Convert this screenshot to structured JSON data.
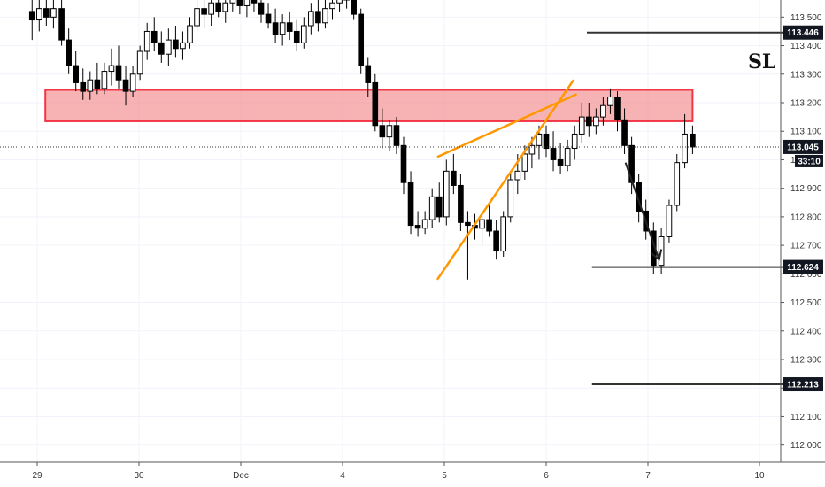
{
  "chart_data": {
    "type": "candlestick",
    "y_range": [
      111.94,
      113.56
    ],
    "x_range_days": [
      -0.1,
      10.2
    ],
    "y_ticks": [
      "113.500",
      "113.400",
      "113.300",
      "113.200",
      "113.100",
      "113.000",
      "112.900",
      "112.800",
      "112.700",
      "112.600",
      "112.500",
      "112.400",
      "112.300",
      "112.200",
      "112.100",
      "112.000"
    ],
    "x_ticks": [
      {
        "label": "29",
        "day": 0
      },
      {
        "label": "30",
        "day": 1
      },
      {
        "label": "Dec",
        "day": 2
      },
      {
        "label": "4",
        "day": 3
      },
      {
        "label": "5",
        "day": 4
      },
      {
        "label": "6",
        "day": 5
      },
      {
        "label": "7",
        "day": 6
      },
      {
        "label": "10",
        "day": 7
      }
    ],
    "current_price": {
      "value": 113.045,
      "label": "113.045",
      "countdown": "33:10"
    },
    "price_tags": [
      {
        "value": 113.446,
        "label": "113.446"
      },
      {
        "value": 112.624,
        "label": "112.624"
      },
      {
        "value": 112.213,
        "label": "112.213"
      }
    ],
    "annotations": {
      "sl_label": "SL",
      "resistance_zone": {
        "y_low": 113.135,
        "y_high": 113.245,
        "day_start": 0.08,
        "day_end": 6.4
      },
      "level_lines": [
        {
          "value": 113.446,
          "day_start": 5.4,
          "day_end": 7.3
        },
        {
          "value": 112.624,
          "day_start": 5.45,
          "day_end": 7.3
        },
        {
          "value": 112.213,
          "day_start": 5.45,
          "day_end": 7.3
        }
      ],
      "wedge_lines": [
        {
          "from": [
            3.93,
            112.58
          ],
          "to": [
            5.27,
            113.28
          ]
        },
        {
          "from": [
            3.93,
            113.01
          ],
          "to": [
            5.3,
            113.23
          ]
        }
      ],
      "arrow": {
        "from": [
          5.78,
          112.99
        ],
        "to": [
          6.1,
          112.65
        ]
      }
    },
    "candles": [
      {
        "t": -0.05,
        "o": 113.52,
        "h": 113.66,
        "l": 113.42,
        "c": 113.49
      },
      {
        "t": 0.02,
        "o": 113.49,
        "h": 113.56,
        "l": 113.45,
        "c": 113.53
      },
      {
        "t": 0.09,
        "o": 113.53,
        "h": 113.62,
        "l": 113.47,
        "c": 113.5
      },
      {
        "t": 0.16,
        "o": 113.5,
        "h": 113.6,
        "l": 113.46,
        "c": 113.53
      },
      {
        "t": 0.24,
        "o": 113.53,
        "h": 113.56,
        "l": 113.4,
        "c": 113.42
      },
      {
        "t": 0.31,
        "o": 113.42,
        "h": 113.46,
        "l": 113.3,
        "c": 113.33
      },
      {
        "t": 0.38,
        "o": 113.33,
        "h": 113.38,
        "l": 113.24,
        "c": 113.27
      },
      {
        "t": 0.45,
        "o": 113.27,
        "h": 113.32,
        "l": 113.21,
        "c": 113.24
      },
      {
        "t": 0.52,
        "o": 113.24,
        "h": 113.31,
        "l": 113.21,
        "c": 113.28
      },
      {
        "t": 0.59,
        "o": 113.28,
        "h": 113.34,
        "l": 113.23,
        "c": 113.25
      },
      {
        "t": 0.66,
        "o": 113.25,
        "h": 113.34,
        "l": 113.23,
        "c": 113.31
      },
      {
        "t": 0.73,
        "o": 113.31,
        "h": 113.39,
        "l": 113.26,
        "c": 113.33
      },
      {
        "t": 0.8,
        "o": 113.33,
        "h": 113.4,
        "l": 113.25,
        "c": 113.28
      },
      {
        "t": 0.87,
        "o": 113.28,
        "h": 113.33,
        "l": 113.19,
        "c": 113.24
      },
      {
        "t": 0.94,
        "o": 113.24,
        "h": 113.33,
        "l": 113.22,
        "c": 113.3
      },
      {
        "t": 1.01,
        "o": 113.3,
        "h": 113.4,
        "l": 113.28,
        "c": 113.38
      },
      {
        "t": 1.08,
        "o": 113.38,
        "h": 113.48,
        "l": 113.35,
        "c": 113.45
      },
      {
        "t": 1.15,
        "o": 113.45,
        "h": 113.5,
        "l": 113.38,
        "c": 113.41
      },
      {
        "t": 1.22,
        "o": 113.41,
        "h": 113.45,
        "l": 113.34,
        "c": 113.37
      },
      {
        "t": 1.29,
        "o": 113.37,
        "h": 113.46,
        "l": 113.33,
        "c": 113.42
      },
      {
        "t": 1.36,
        "o": 113.42,
        "h": 113.47,
        "l": 113.36,
        "c": 113.39
      },
      {
        "t": 1.43,
        "o": 113.39,
        "h": 113.45,
        "l": 113.35,
        "c": 113.41
      },
      {
        "t": 1.5,
        "o": 113.41,
        "h": 113.5,
        "l": 113.39,
        "c": 113.47
      },
      {
        "t": 1.57,
        "o": 113.47,
        "h": 113.56,
        "l": 113.45,
        "c": 113.53
      },
      {
        "t": 1.64,
        "o": 113.53,
        "h": 113.6,
        "l": 113.46,
        "c": 113.51
      },
      {
        "t": 1.71,
        "o": 113.51,
        "h": 113.58,
        "l": 113.47,
        "c": 113.55
      },
      {
        "t": 1.78,
        "o": 113.55,
        "h": 113.6,
        "l": 113.5,
        "c": 113.52
      },
      {
        "t": 1.85,
        "o": 113.52,
        "h": 113.58,
        "l": 113.48,
        "c": 113.55
      },
      {
        "t": 1.92,
        "o": 113.55,
        "h": 113.6,
        "l": 113.52,
        "c": 113.58
      },
      {
        "t": 1.99,
        "o": 113.58,
        "h": 113.62,
        "l": 113.51,
        "c": 113.54
      },
      {
        "t": 2.06,
        "o": 113.54,
        "h": 113.61,
        "l": 113.5,
        "c": 113.58
      },
      {
        "t": 2.13,
        "o": 113.58,
        "h": 113.63,
        "l": 113.52,
        "c": 113.55
      },
      {
        "t": 2.2,
        "o": 113.55,
        "h": 113.6,
        "l": 113.48,
        "c": 113.51
      },
      {
        "t": 2.27,
        "o": 113.51,
        "h": 113.55,
        "l": 113.46,
        "c": 113.48
      },
      {
        "t": 2.34,
        "o": 113.48,
        "h": 113.53,
        "l": 113.41,
        "c": 113.44
      },
      {
        "t": 2.41,
        "o": 113.44,
        "h": 113.51,
        "l": 113.4,
        "c": 113.48
      },
      {
        "t": 2.48,
        "o": 113.48,
        "h": 113.52,
        "l": 113.42,
        "c": 113.45
      },
      {
        "t": 2.55,
        "o": 113.45,
        "h": 113.49,
        "l": 113.38,
        "c": 113.41
      },
      {
        "t": 2.62,
        "o": 113.41,
        "h": 113.5,
        "l": 113.39,
        "c": 113.47
      },
      {
        "t": 2.69,
        "o": 113.47,
        "h": 113.55,
        "l": 113.44,
        "c": 113.52
      },
      {
        "t": 2.76,
        "o": 113.52,
        "h": 113.57,
        "l": 113.45,
        "c": 113.48
      },
      {
        "t": 2.83,
        "o": 113.48,
        "h": 113.56,
        "l": 113.46,
        "c": 113.53
      },
      {
        "t": 2.9,
        "o": 113.53,
        "h": 113.58,
        "l": 113.49,
        "c": 113.55
      },
      {
        "t": 2.97,
        "o": 113.55,
        "h": 113.6,
        "l": 113.52,
        "c": 113.57
      },
      {
        "t": 3.04,
        "o": 113.57,
        "h": 113.62,
        "l": 113.53,
        "c": 113.56
      },
      {
        "t": 3.11,
        "o": 113.56,
        "h": 113.58,
        "l": 113.49,
        "c": 113.51
      },
      {
        "t": 3.18,
        "o": 113.51,
        "h": 113.53,
        "l": 113.3,
        "c": 113.33
      },
      {
        "t": 3.25,
        "o": 113.33,
        "h": 113.36,
        "l": 113.22,
        "c": 113.27
      },
      {
        "t": 3.32,
        "o": 113.27,
        "h": 113.3,
        "l": 113.1,
        "c": 113.12
      },
      {
        "t": 3.39,
        "o": 113.12,
        "h": 113.18,
        "l": 113.04,
        "c": 113.08
      },
      {
        "t": 3.46,
        "o": 113.08,
        "h": 113.14,
        "l": 113.03,
        "c": 113.12
      },
      {
        "t": 3.53,
        "o": 113.12,
        "h": 113.15,
        "l": 113.02,
        "c": 113.05
      },
      {
        "t": 3.6,
        "o": 113.05,
        "h": 113.08,
        "l": 112.88,
        "c": 112.92
      },
      {
        "t": 3.67,
        "o": 112.92,
        "h": 112.96,
        "l": 112.74,
        "c": 112.77
      },
      {
        "t": 3.74,
        "o": 112.77,
        "h": 112.82,
        "l": 112.73,
        "c": 112.76
      },
      {
        "t": 3.81,
        "o": 112.76,
        "h": 112.82,
        "l": 112.74,
        "c": 112.79
      },
      {
        "t": 3.88,
        "o": 112.79,
        "h": 112.9,
        "l": 112.76,
        "c": 112.87
      },
      {
        "t": 3.95,
        "o": 112.87,
        "h": 112.92,
        "l": 112.78,
        "c": 112.8
      },
      {
        "t": 4.02,
        "o": 112.8,
        "h": 113.0,
        "l": 112.77,
        "c": 112.96
      },
      {
        "t": 4.09,
        "o": 112.96,
        "h": 113.02,
        "l": 112.88,
        "c": 112.91
      },
      {
        "t": 4.16,
        "o": 112.91,
        "h": 112.95,
        "l": 112.75,
        "c": 112.78
      },
      {
        "t": 4.23,
        "o": 112.78,
        "h": 112.82,
        "l": 112.58,
        "c": 112.77
      },
      {
        "t": 4.3,
        "o": 112.77,
        "h": 112.81,
        "l": 112.72,
        "c": 112.76
      },
      {
        "t": 4.37,
        "o": 112.76,
        "h": 112.82,
        "l": 112.7,
        "c": 112.79
      },
      {
        "t": 4.44,
        "o": 112.79,
        "h": 112.85,
        "l": 112.73,
        "c": 112.75
      },
      {
        "t": 4.51,
        "o": 112.75,
        "h": 112.79,
        "l": 112.65,
        "c": 112.68
      },
      {
        "t": 4.58,
        "o": 112.68,
        "h": 112.82,
        "l": 112.66,
        "c": 112.8
      },
      {
        "t": 4.65,
        "o": 112.8,
        "h": 112.96,
        "l": 112.78,
        "c": 112.93
      },
      {
        "t": 4.72,
        "o": 112.93,
        "h": 113.02,
        "l": 112.88,
        "c": 112.96
      },
      {
        "t": 4.79,
        "o": 112.96,
        "h": 113.05,
        "l": 112.93,
        "c": 113.02
      },
      {
        "t": 4.86,
        "o": 113.02,
        "h": 113.08,
        "l": 112.97,
        "c": 113.05
      },
      {
        "t": 4.93,
        "o": 113.05,
        "h": 113.12,
        "l": 113.0,
        "c": 113.09
      },
      {
        "t": 5.0,
        "o": 113.09,
        "h": 113.12,
        "l": 113.01,
        "c": 113.04
      },
      {
        "t": 5.07,
        "o": 113.04,
        "h": 113.1,
        "l": 112.96,
        "c": 113.0
      },
      {
        "t": 5.14,
        "o": 113.0,
        "h": 113.06,
        "l": 112.95,
        "c": 112.98
      },
      {
        "t": 5.21,
        "o": 112.98,
        "h": 113.07,
        "l": 112.96,
        "c": 113.04
      },
      {
        "t": 5.28,
        "o": 113.04,
        "h": 113.12,
        "l": 113.0,
        "c": 113.09
      },
      {
        "t": 5.35,
        "o": 113.09,
        "h": 113.2,
        "l": 113.06,
        "c": 113.15
      },
      {
        "t": 5.42,
        "o": 113.15,
        "h": 113.2,
        "l": 113.08,
        "c": 113.12
      },
      {
        "t": 5.49,
        "o": 113.12,
        "h": 113.18,
        "l": 113.09,
        "c": 113.15
      },
      {
        "t": 5.56,
        "o": 113.15,
        "h": 113.22,
        "l": 113.12,
        "c": 113.19
      },
      {
        "t": 5.63,
        "o": 113.19,
        "h": 113.25,
        "l": 113.16,
        "c": 113.22
      },
      {
        "t": 5.7,
        "o": 113.22,
        "h": 113.24,
        "l": 113.1,
        "c": 113.14
      },
      {
        "t": 5.77,
        "o": 113.14,
        "h": 113.18,
        "l": 113.02,
        "c": 113.05
      },
      {
        "t": 5.84,
        "o": 113.05,
        "h": 113.08,
        "l": 112.88,
        "c": 112.92
      },
      {
        "t": 5.91,
        "o": 112.92,
        "h": 112.95,
        "l": 112.78,
        "c": 112.82
      },
      {
        "t": 5.98,
        "o": 112.82,
        "h": 112.86,
        "l": 112.72,
        "c": 112.75
      },
      {
        "t": 6.05,
        "o": 112.75,
        "h": 112.78,
        "l": 112.6,
        "c": 112.63
      },
      {
        "t": 6.12,
        "o": 112.63,
        "h": 112.76,
        "l": 112.6,
        "c": 112.73
      },
      {
        "t": 6.19,
        "o": 112.73,
        "h": 112.86,
        "l": 112.71,
        "c": 112.84
      },
      {
        "t": 6.26,
        "o": 112.84,
        "h": 113.02,
        "l": 112.82,
        "c": 112.99
      },
      {
        "t": 6.33,
        "o": 112.99,
        "h": 113.16,
        "l": 112.97,
        "c": 113.09
      },
      {
        "t": 6.4,
        "o": 113.09,
        "h": 113.12,
        "l": 113.02,
        "c": 113.045
      }
    ]
  }
}
